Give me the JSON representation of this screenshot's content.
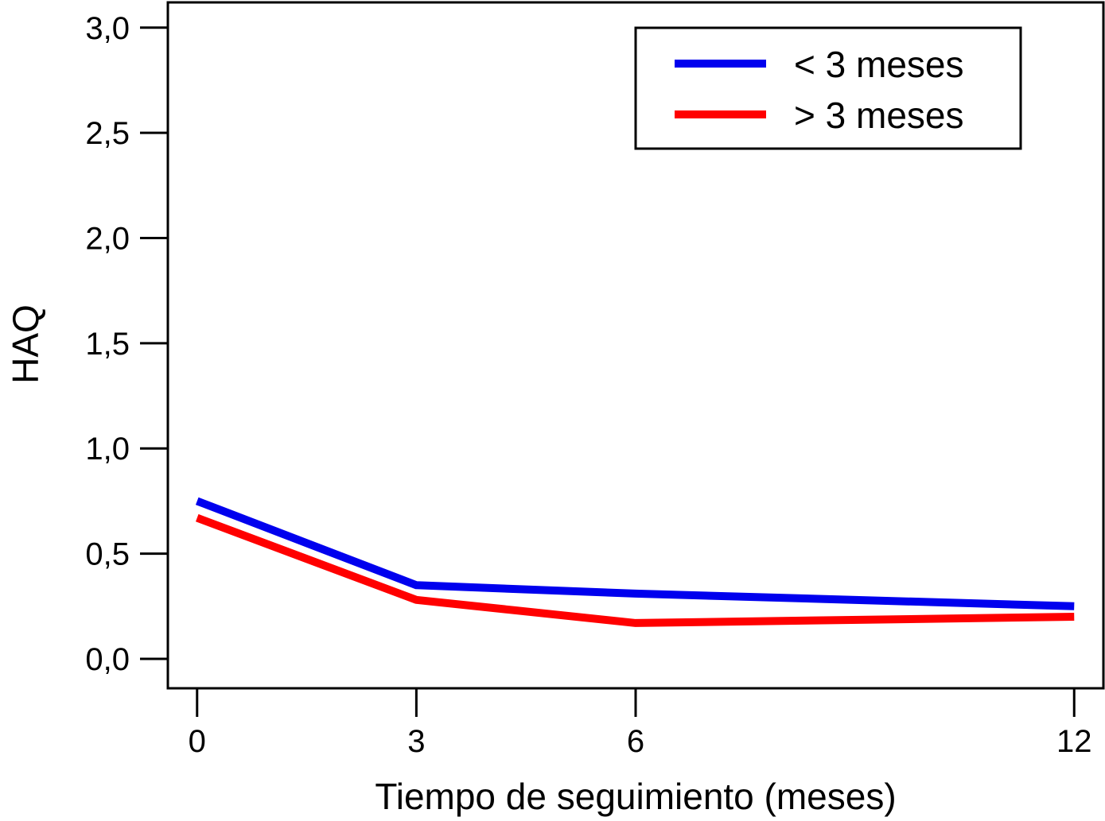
{
  "chart_data": {
    "type": "line",
    "title": "",
    "xlabel": "Tiempo de seguimiento (meses)",
    "ylabel": "HAQ",
    "x": [
      0,
      3,
      6,
      12
    ],
    "x_tick_labels": [
      "0",
      "3",
      "6",
      "12"
    ],
    "y_ticks": [
      0.0,
      0.5,
      1.0,
      1.5,
      2.0,
      2.5,
      3.0
    ],
    "y_tick_labels": [
      "0,0",
      "0,5",
      "1,0",
      "1,5",
      "2,0",
      "2,5",
      "3,0"
    ],
    "xlim": [
      -0.4,
      12.4
    ],
    "ylim": [
      -0.14,
      3.12
    ],
    "grid": false,
    "legend_position": "top-right",
    "series": [
      {
        "name": "< 3 meses",
        "color": "#0000ee",
        "values": [
          0.75,
          0.35,
          0.31,
          0.25
        ]
      },
      {
        "name": "> 3 meses",
        "color": "#ff0000",
        "values": [
          0.67,
          0.28,
          0.17,
          0.2
        ]
      }
    ]
  }
}
